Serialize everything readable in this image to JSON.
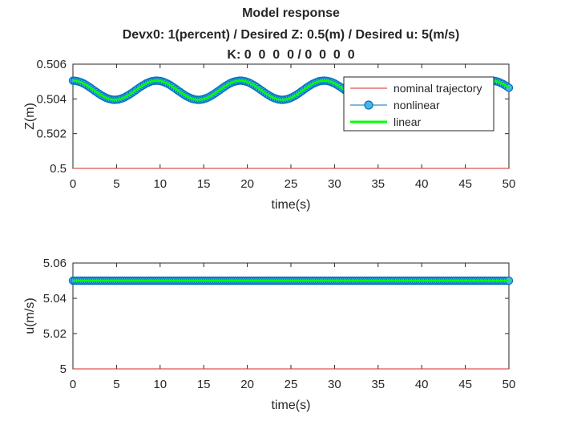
{
  "figure": {
    "title_lines": [
      "Model response",
      "Devx0: 1(percent) / Desired Z: 0.5(m) / Desired u: 5(m/s)",
      "K: 0  0  0  0 / 0  0  0  0"
    ]
  },
  "colors": {
    "nominal": "#d62728",
    "nonlinear_edge": "#0072bd",
    "nonlinear_face": "#4db3e6",
    "linear": "#00ff00",
    "axes": "#262626",
    "background": "#ffffff"
  },
  "chart_data": [
    {
      "type": "line",
      "xlabel": "time(s)",
      "ylabel": "Z(m)",
      "xlim": [
        0,
        50
      ],
      "ylim": [
        0.5,
        0.506
      ],
      "xticks": [
        0,
        5,
        10,
        15,
        20,
        25,
        30,
        35,
        40,
        45,
        50
      ],
      "yticks": [
        0.5,
        0.502,
        0.504,
        0.506
      ],
      "ytick_labels": [
        "0.5",
        "0.502",
        "0.504",
        "0.506"
      ],
      "legend_position": "top-right",
      "series": [
        {
          "name": "nominal trajectory",
          "style": "thin-line",
          "function": "constant",
          "value": 0.5
        },
        {
          "name": "nonlinear",
          "style": "circle-markers",
          "function": "sinusoid",
          "x_range": [
            0,
            50
          ],
          "mean": 0.5045,
          "amplitude": 0.00055,
          "period": 9.6,
          "peak_at": 0
        },
        {
          "name": "linear",
          "style": "thick-line",
          "function": "sinusoid",
          "x_range": [
            0,
            50
          ],
          "mean": 0.5045,
          "amplitude": 0.00055,
          "period": 9.6,
          "peak_at": 0
        }
      ]
    },
    {
      "type": "line",
      "xlabel": "time(s)",
      "ylabel": "u(m/s)",
      "xlim": [
        0,
        50
      ],
      "ylim": [
        5,
        5.06
      ],
      "xticks": [
        0,
        5,
        10,
        15,
        20,
        25,
        30,
        35,
        40,
        45,
        50
      ],
      "yticks": [
        5,
        5.02,
        5.04,
        5.06
      ],
      "ytick_labels": [
        "5",
        "5.02",
        "5.04",
        "5.06"
      ],
      "series": [
        {
          "style": "thin-line",
          "function": "constant",
          "value": 5.0
        },
        {
          "style": "circle-markers",
          "function": "constant",
          "value": 5.05
        },
        {
          "style": "thick-line",
          "function": "constant",
          "value": 5.05
        }
      ]
    }
  ]
}
